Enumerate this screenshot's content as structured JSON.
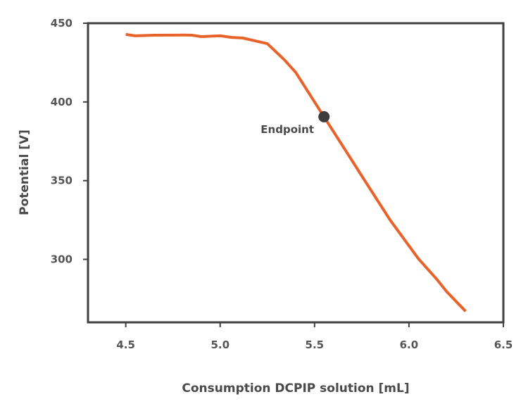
{
  "chart_data": {
    "type": "line",
    "title": "",
    "xlabel": "Consumption DCPIP solution [mL]",
    "ylabel": "Potential [V]",
    "xlim": [
      4.3,
      6.5
    ],
    "ylim": [
      260,
      450
    ],
    "xticks": [
      "4.5",
      "5.0",
      "5.5",
      "6.0",
      "6.5"
    ],
    "yticks": [
      "450",
      "400",
      "350",
      "300"
    ],
    "grid": false,
    "colors": {
      "line": "#e8632b",
      "marker": "#3d3d3d",
      "axis": "#404040"
    },
    "series": [
      {
        "x": [
          4.5,
          4.55,
          4.65,
          4.8,
          4.85,
          4.9,
          5.0,
          5.06,
          5.12,
          5.25,
          5.34,
          5.4,
          5.5,
          5.55,
          5.66,
          5.75,
          5.9,
          6.05,
          6.15,
          6.2,
          6.3
        ],
        "y": [
          442.9,
          442,
          442.4,
          442.5,
          442.4,
          441.5,
          442,
          441,
          440.6,
          437,
          426.8,
          418.8,
          400,
          390.6,
          370,
          353,
          325,
          300.4,
          287,
          279.5,
          267
        ]
      }
    ],
    "annotations": [
      {
        "label": "Endpoint",
        "x": 5.55,
        "y": 390.6
      }
    ]
  }
}
